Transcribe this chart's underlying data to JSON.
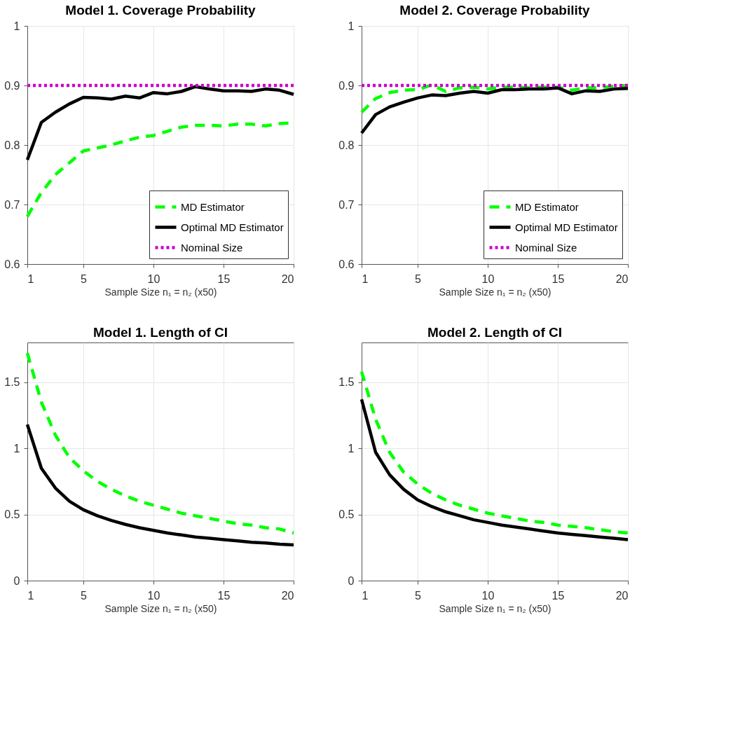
{
  "chart_data": [
    {
      "type": "line",
      "title": "Model 1. Coverage Probability",
      "xlabel": "Sample Size n₁ = n₂ (x50)",
      "x": [
        1,
        2,
        3,
        4,
        5,
        6,
        7,
        8,
        9,
        10,
        11,
        12,
        13,
        14,
        15,
        16,
        17,
        18,
        19,
        20
      ],
      "xlim": [
        1,
        20
      ],
      "xticks": [
        1,
        5,
        10,
        15,
        20
      ],
      "ylim": [
        0.6,
        1
      ],
      "yticks": [
        0.6,
        0.7,
        0.8,
        0.9,
        1
      ],
      "grid": true,
      "legend": "bottom right",
      "series": [
        {
          "name": "MD Estimator",
          "color": "#00ff00",
          "line_style": "dashed",
          "values": [
            0.68,
            0.72,
            0.75,
            0.77,
            0.79,
            0.795,
            0.8,
            0.807,
            0.813,
            0.816,
            0.823,
            0.83,
            0.833,
            0.833,
            0.832,
            0.835,
            0.835,
            0.832,
            0.836,
            0.837
          ]
        },
        {
          "name": "Optimal MD Estimator",
          "color": "#000000",
          "line_style": "solid",
          "values": [
            0.775,
            0.838,
            0.855,
            0.869,
            0.88,
            0.879,
            0.877,
            0.882,
            0.879,
            0.888,
            0.886,
            0.89,
            0.898,
            0.894,
            0.891,
            0.891,
            0.89,
            0.894,
            0.892,
            0.885
          ]
        },
        {
          "name": "Nominal Size",
          "color": "#cc00cc",
          "line_style": "dotted",
          "values": [
            0.9,
            0.9,
            0.9,
            0.9,
            0.9,
            0.9,
            0.9,
            0.9,
            0.9,
            0.9,
            0.9,
            0.9,
            0.9,
            0.9,
            0.9,
            0.9,
            0.9,
            0.9,
            0.9,
            0.9
          ]
        }
      ]
    },
    {
      "type": "line",
      "title": "Model 2. Coverage Probability",
      "xlabel": "Sample Size n₁ = n₂ (x50)",
      "x": [
        1,
        2,
        3,
        4,
        5,
        6,
        7,
        8,
        9,
        10,
        11,
        12,
        13,
        14,
        15,
        16,
        17,
        18,
        19,
        20
      ],
      "xlim": [
        1,
        20
      ],
      "xticks": [
        1,
        5,
        10,
        15,
        20
      ],
      "ylim": [
        0.6,
        1
      ],
      "yticks": [
        0.6,
        0.7,
        0.8,
        0.9,
        1
      ],
      "grid": true,
      "legend": "bottom right",
      "series": [
        {
          "name": "MD Estimator",
          "color": "#00ff00",
          "line_style": "dashed",
          "values": [
            0.855,
            0.878,
            0.888,
            0.892,
            0.893,
            0.901,
            0.89,
            0.896,
            0.897,
            0.894,
            0.897,
            0.897,
            0.896,
            0.897,
            0.897,
            0.892,
            0.896,
            0.896,
            0.899,
            0.9
          ]
        },
        {
          "name": "Optimal MD Estimator",
          "color": "#000000",
          "line_style": "solid",
          "values": [
            0.82,
            0.851,
            0.864,
            0.872,
            0.879,
            0.884,
            0.883,
            0.887,
            0.89,
            0.887,
            0.893,
            0.893,
            0.894,
            0.894,
            0.896,
            0.886,
            0.891,
            0.89,
            0.894,
            0.895
          ]
        },
        {
          "name": "Nominal Size",
          "color": "#cc00cc",
          "line_style": "dotted",
          "values": [
            0.9,
            0.9,
            0.9,
            0.9,
            0.9,
            0.9,
            0.9,
            0.9,
            0.9,
            0.9,
            0.9,
            0.9,
            0.9,
            0.9,
            0.9,
            0.9,
            0.9,
            0.9,
            0.9,
            0.9
          ]
        }
      ]
    },
    {
      "type": "line",
      "title": "Model 1. Length of CI",
      "xlabel": "Sample Size n₁ = n₂ (x50)",
      "x": [
        1,
        2,
        3,
        4,
        5,
        6,
        7,
        8,
        9,
        10,
        11,
        12,
        13,
        14,
        15,
        16,
        17,
        18,
        19,
        20
      ],
      "xlim": [
        1,
        20
      ],
      "xticks": [
        1,
        5,
        10,
        15,
        20
      ],
      "ylim": [
        0,
        1.8
      ],
      "yticks": [
        0,
        0.5,
        1,
        1.5
      ],
      "grid": true,
      "series": [
        {
          "color": "#00ff00",
          "line_style": "dashed",
          "values": [
            1.72,
            1.35,
            1.1,
            0.93,
            0.83,
            0.75,
            0.69,
            0.64,
            0.6,
            0.57,
            0.54,
            0.51,
            0.49,
            0.47,
            0.45,
            0.43,
            0.42,
            0.4,
            0.39,
            0.36
          ]
        },
        {
          "color": "#000000",
          "line_style": "solid",
          "values": [
            1.18,
            0.85,
            0.7,
            0.6,
            0.535,
            0.49,
            0.455,
            0.425,
            0.4,
            0.38,
            0.36,
            0.345,
            0.33,
            0.32,
            0.31,
            0.3,
            0.29,
            0.285,
            0.275,
            0.27
          ]
        }
      ]
    },
    {
      "type": "line",
      "title": "Model 2. Length of CI",
      "xlabel": "Sample Size n₁ = n₂ (x50)",
      "x": [
        1,
        2,
        3,
        4,
        5,
        6,
        7,
        8,
        9,
        10,
        11,
        12,
        13,
        14,
        15,
        16,
        17,
        18,
        19,
        20
      ],
      "xlim": [
        1,
        20
      ],
      "xticks": [
        1,
        5,
        10,
        15,
        20
      ],
      "ylim": [
        0,
        1.8
      ],
      "yticks": [
        0,
        0.5,
        1,
        1.5
      ],
      "grid": true,
      "series": [
        {
          "color": "#00ff00",
          "line_style": "dashed",
          "values": [
            1.58,
            1.22,
            0.97,
            0.82,
            0.73,
            0.66,
            0.61,
            0.57,
            0.54,
            0.51,
            0.49,
            0.47,
            0.45,
            0.44,
            0.42,
            0.41,
            0.4,
            0.385,
            0.37,
            0.36
          ]
        },
        {
          "color": "#000000",
          "line_style": "solid",
          "values": [
            1.37,
            0.97,
            0.8,
            0.69,
            0.61,
            0.56,
            0.52,
            0.49,
            0.46,
            0.44,
            0.42,
            0.405,
            0.39,
            0.375,
            0.36,
            0.35,
            0.34,
            0.33,
            0.32,
            0.31
          ]
        }
      ]
    }
  ]
}
